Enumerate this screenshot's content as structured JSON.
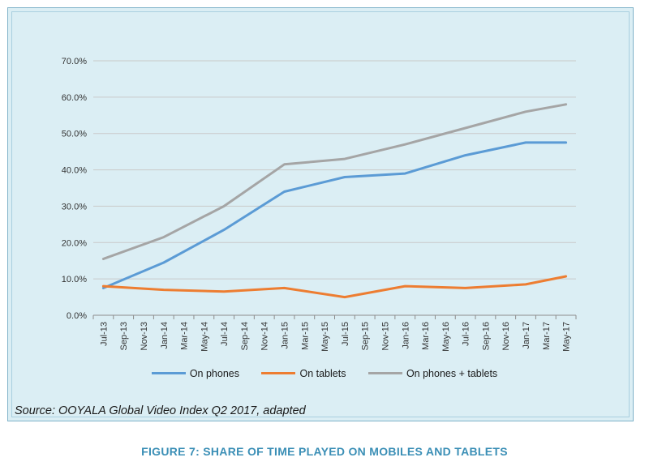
{
  "chart_data": {
    "type": "line",
    "title": "",
    "xlabel": "",
    "ylabel": "",
    "ylim": [
      0,
      70
    ],
    "y_ticks": [
      "0.0%",
      "10.0%",
      "20.0%",
      "30.0%",
      "40.0%",
      "50.0%",
      "60.0%",
      "70.0%"
    ],
    "categories": [
      "Jul-13",
      "Sep-13",
      "Nov-13",
      "Jan-14",
      "Mar-14",
      "May-14",
      "Jul-14",
      "Sep-14",
      "Nov-14",
      "Jan-15",
      "Mar-15",
      "May-15",
      "Jul-15",
      "Sep-15",
      "Nov-15",
      "Jan-16",
      "Mar-16",
      "May-16",
      "Jul-16",
      "Sep-16",
      "Nov-16",
      "Jan-17",
      "Mar-17",
      "May-17"
    ],
    "series": [
      {
        "name": "On phones",
        "color": "#5b9bd5",
        "points": [
          [
            0,
            7.5
          ],
          [
            3,
            14.5
          ],
          [
            6,
            23.5
          ],
          [
            9,
            34
          ],
          [
            12,
            38
          ],
          [
            15,
            39
          ],
          [
            18,
            44
          ],
          [
            21,
            47.5
          ],
          [
            23,
            47.5
          ]
        ]
      },
      {
        "name": "On tablets",
        "color": "#ed7d31",
        "points": [
          [
            0,
            8
          ],
          [
            3,
            7
          ],
          [
            6,
            6.5
          ],
          [
            9,
            7.5
          ],
          [
            12,
            5
          ],
          [
            15,
            8
          ],
          [
            18,
            7.5
          ],
          [
            21,
            8.5
          ],
          [
            23,
            10.7
          ]
        ]
      },
      {
        "name": "On phones + tablets",
        "color": "#a5a5a5",
        "points": [
          [
            0,
            15.5
          ],
          [
            3,
            21.5
          ],
          [
            6,
            30
          ],
          [
            9,
            41.5
          ],
          [
            12,
            43
          ],
          [
            15,
            47
          ],
          [
            18,
            51.5
          ],
          [
            21,
            56
          ],
          [
            23,
            58
          ]
        ]
      }
    ],
    "legend_position": "bottom"
  },
  "source_text": "Source: OOYALA Global Video Index Q2 2017, adapted",
  "caption": "FIGURE 7: SHARE OF TIME PLAYED ON MOBILES AND TABLETS"
}
